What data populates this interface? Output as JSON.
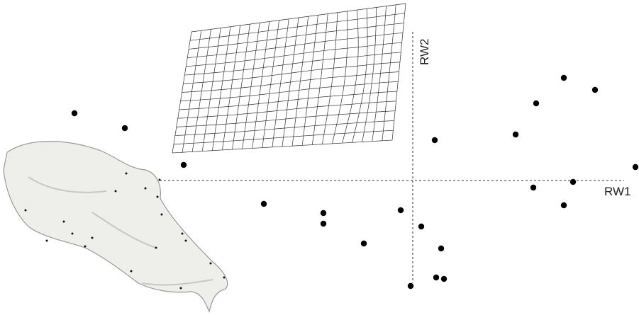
{
  "chart_data": {
    "type": "scatter",
    "x_label": "RW1",
    "y_label": "RW2",
    "xlim": [
      -5.82,
      3.19
    ],
    "ylim": [
      -1.9,
      2.55
    ],
    "color": "#000000",
    "x": [
      -4.77,
      -4.06,
      -3.23,
      -2.1,
      -1.26,
      -1.26,
      -0.69,
      -0.17,
      0.12,
      0.31,
      0.4,
      0.33,
      0.44,
      -0.03,
      1.45,
      1.74,
      2.13,
      2.57,
      1.7,
      2.26,
      2.13,
      3.14
    ],
    "y": [
      0.95,
      0.74,
      0.22,
      -0.33,
      -0.46,
      -0.61,
      -0.89,
      -0.42,
      -0.65,
      0.57,
      -0.96,
      -1.37,
      -1.39,
      -1.49,
      0.65,
      1.09,
      1.45,
      1.28,
      -0.1,
      -0.02,
      -0.35,
      0.19
    ]
  }
}
